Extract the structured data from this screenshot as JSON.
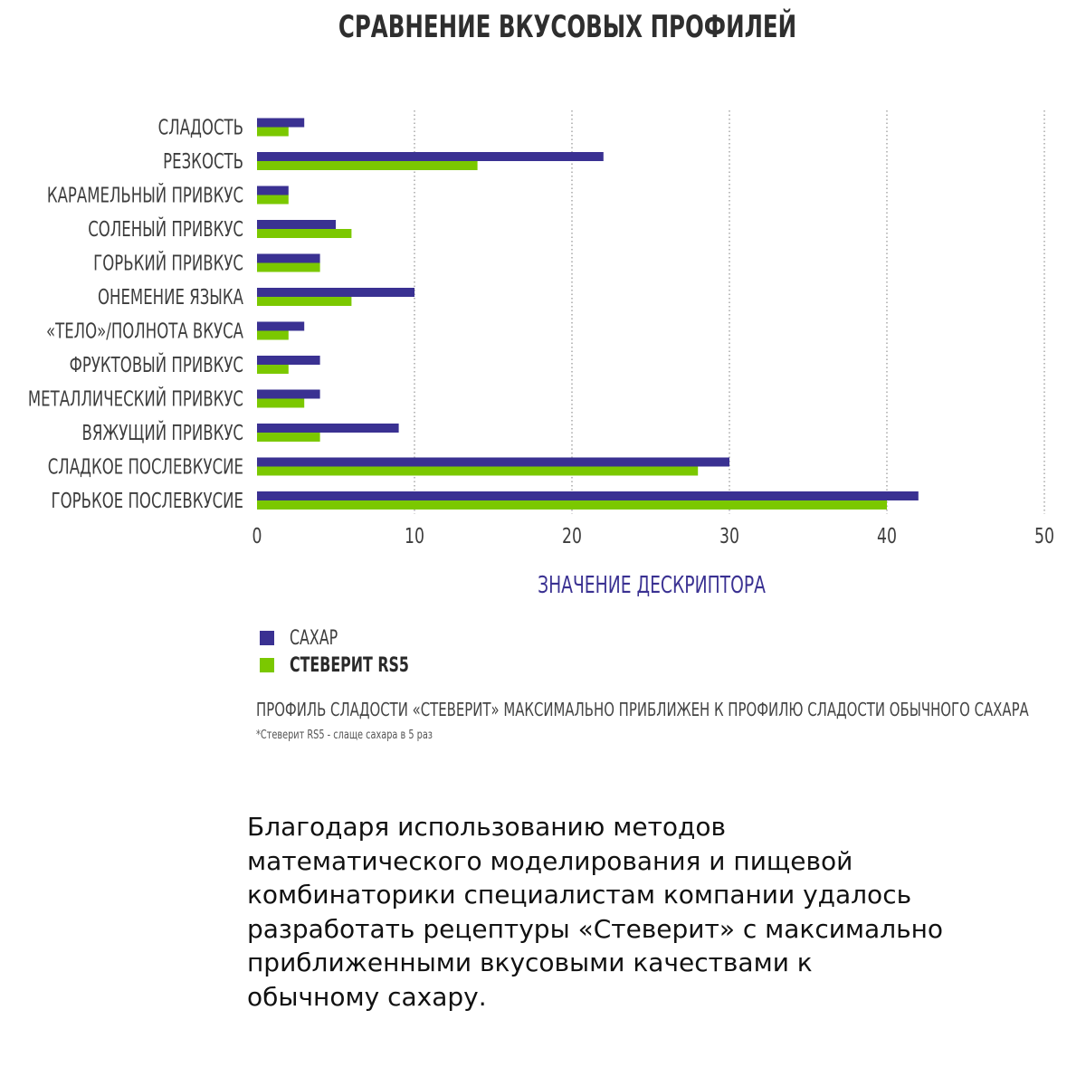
{
  "chart_data": {
    "type": "bar",
    "orientation": "horizontal",
    "title": "СРАВНЕНИЕ ВКУСОВЫХ ПРОФИЛЕЙ",
    "xlabel": "ЗНАЧЕНИЕ ДЕСКРИПТОРА",
    "ylabel": "",
    "xlim": [
      0,
      50
    ],
    "xticks": [
      0,
      10,
      20,
      30,
      40,
      50
    ],
    "grid": "vertical dotted",
    "categories": [
      "СЛАДОСТЬ",
      "РЕЗКОСТЬ",
      "КАРАМЕЛЬНЫЙ ПРИВКУС",
      "СОЛЕНЫЙ ПРИВКУС",
      "ГОРЬКИЙ ПРИВКУС",
      "ОНЕМЕНИЕ ЯЗЫКА",
      "«ТЕЛО»/ПОЛНОТА ВКУСА",
      "ФРУКТОВЫЙ ПРИВКУС",
      "МЕТАЛЛИЧЕСКИЙ ПРИВКУС",
      "ВЯЖУЩИЙ ПРИВКУС",
      "СЛАДКОЕ ПОСЛЕВКУСИЕ",
      "ГОРЬКОЕ ПОСЛЕВКУСИЕ"
    ],
    "series": [
      {
        "name": "САХАР",
        "color": "#3a3192",
        "values": [
          3,
          22,
          2,
          5,
          4,
          10,
          3,
          4,
          4,
          9,
          30,
          42
        ]
      },
      {
        "name": "СТЕВЕРИТ RS5",
        "color": "#7bc800",
        "values": [
          2,
          14,
          2,
          6,
          4,
          6,
          2,
          2,
          3,
          4,
          28,
          40
        ]
      }
    ],
    "legend_position": "bottom-left"
  },
  "caption": "ПРОФИЛЬ СЛАДОСТИ «СТЕВЕРИТ» МАКСИМАЛЬНО ПРИБЛИЖЕН К ПРОФИЛЮ СЛАДОСТИ ОБЫЧНОГО САХАРА",
  "footnote": "*Стеверит RS5 - слаще сахара в 5 раз",
  "body_text": [
    "Благодаря использованию методов",
    "математического моделирования и пищевой",
    "комбинаторики специалистам компании удалось",
    "разработать рецептуры «Стеверит» с максимально",
    "приближенными вкусовыми качествами к",
    "обычному сахару."
  ]
}
